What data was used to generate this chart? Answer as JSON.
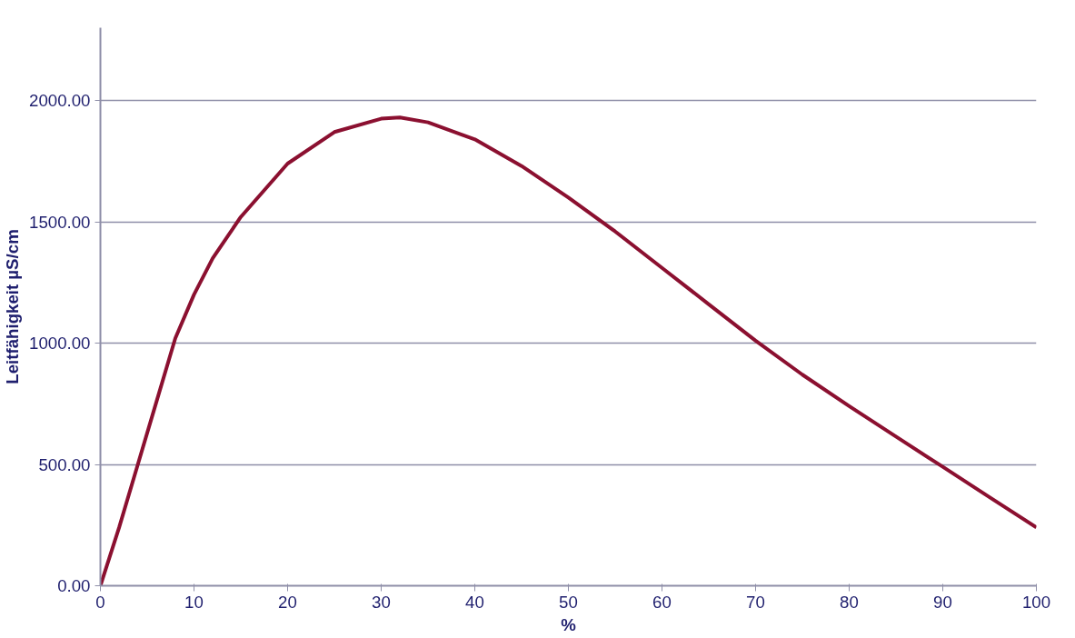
{
  "chart_data": {
    "type": "line",
    "xlabel": "%",
    "ylabel": "Leitfähigkeit µS/cm",
    "x": [
      0,
      2,
      4,
      6,
      8,
      10,
      12,
      15,
      20,
      25,
      30,
      32,
      35,
      40,
      45,
      50,
      55,
      60,
      65,
      70,
      75,
      80,
      85,
      90,
      95,
      100
    ],
    "series": [
      {
        "color": "#8b1030",
        "values": [
          0,
          240,
          500,
          760,
          1020,
          1200,
          1350,
          1520,
          1740,
          1870,
          1925,
          1930,
          1910,
          1840,
          1730,
          1600,
          1460,
          1310,
          1160,
          1010,
          870,
          740,
          615,
          490,
          365,
          240
        ]
      }
    ],
    "xlim": [
      0,
      100
    ],
    "xticks": [
      0,
      10,
      20,
      30,
      40,
      50,
      60,
      70,
      80,
      90,
      100
    ],
    "ylim": [
      0,
      2300
    ],
    "yticks": [
      {
        "value": 0,
        "label": "0.00"
      },
      {
        "value": 500,
        "label": "500.00"
      },
      {
        "value": 1000,
        "label": "1000.00"
      },
      {
        "value": 1500,
        "label": "1500.00"
      },
      {
        "value": 2000,
        "label": "2000.00"
      }
    ],
    "grid": "y",
    "marker": "none",
    "line_style": "solid"
  }
}
